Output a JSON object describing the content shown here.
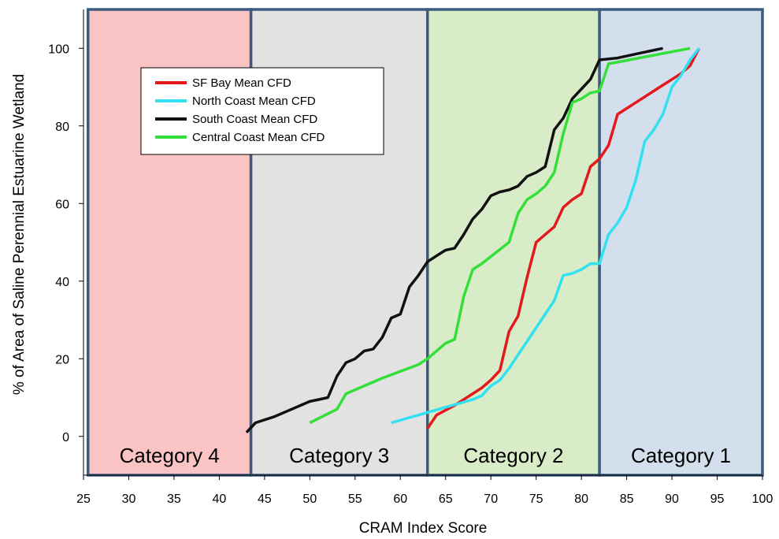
{
  "chart_data": {
    "type": "line",
    "title": "",
    "xlabel": "CRAM Index Score",
    "ylabel": "% of Area of Saline Perennial Estuarine Wetland",
    "xlim": [
      25,
      100
    ],
    "ylim": [
      -10,
      110
    ],
    "xticks": [
      25,
      30,
      35,
      40,
      45,
      50,
      55,
      60,
      65,
      70,
      75,
      80,
      85,
      90,
      95,
      100
    ],
    "yticks": [
      0,
      20,
      40,
      60,
      80,
      100
    ],
    "grid": false,
    "legend_position": "top-left",
    "bands": [
      {
        "label": "Category 4",
        "x_from": 25.5,
        "x_to": 43.5,
        "color": "#fbc4c4"
      },
      {
        "label": "Category 3",
        "x_from": 43.5,
        "x_to": 63,
        "color": "#e2e2e2"
      },
      {
        "label": "Category 2",
        "x_from": 63,
        "x_to": 82,
        "color": "#d9ecc8"
      },
      {
        "label": "Category 1",
        "x_from": 82,
        "x_to": 100,
        "color": "#d4dfee"
      }
    ],
    "band_border_color": "#3d5a80",
    "series": [
      {
        "name": "SF Bay Mean CFD",
        "color": "#e31a1c",
        "points": [
          [
            63,
            2
          ],
          [
            64,
            5.5
          ],
          [
            66,
            8
          ],
          [
            68,
            11
          ],
          [
            69,
            12.5
          ],
          [
            70,
            14.5
          ],
          [
            71,
            17
          ],
          [
            72,
            27
          ],
          [
            73,
            31
          ],
          [
            74,
            41
          ],
          [
            75,
            50
          ],
          [
            76,
            52
          ],
          [
            77,
            54
          ],
          [
            78,
            59
          ],
          [
            79,
            61
          ],
          [
            80,
            62.5
          ],
          [
            81,
            69.5
          ],
          [
            82,
            71.5
          ],
          [
            83,
            75
          ],
          [
            84,
            83
          ],
          [
            85,
            84.5
          ],
          [
            86,
            86
          ],
          [
            87,
            87.5
          ],
          [
            88,
            89
          ],
          [
            89,
            90.5
          ],
          [
            90,
            92
          ],
          [
            91,
            93.5
          ],
          [
            92,
            95.5
          ],
          [
            93,
            100
          ]
        ]
      },
      {
        "name": "North Coast Mean CFD",
        "color": "#33e0f0",
        "points": [
          [
            59,
            3.5
          ],
          [
            62,
            5.5
          ],
          [
            65,
            7.5
          ],
          [
            68,
            9.5
          ],
          [
            69,
            10.5
          ],
          [
            70,
            13
          ],
          [
            71,
            14.5
          ],
          [
            72,
            17.5
          ],
          [
            73,
            21
          ],
          [
            74,
            24.5
          ],
          [
            75,
            28
          ],
          [
            76,
            31.5
          ],
          [
            77,
            35
          ],
          [
            78,
            41.5
          ],
          [
            79,
            42
          ],
          [
            80,
            43
          ],
          [
            81,
            44.5
          ],
          [
            82,
            44.5
          ],
          [
            83,
            52
          ],
          [
            84,
            55
          ],
          [
            85,
            59
          ],
          [
            86,
            66
          ],
          [
            87,
            76
          ],
          [
            88,
            79
          ],
          [
            89,
            83
          ],
          [
            90,
            90
          ],
          [
            91,
            93
          ],
          [
            92,
            97
          ],
          [
            93,
            100
          ]
        ]
      },
      {
        "name": "South Coast Mean CFD",
        "color": "#111111",
        "points": [
          [
            43,
            1
          ],
          [
            44,
            3.5
          ],
          [
            46,
            5
          ],
          [
            48,
            7
          ],
          [
            50,
            9
          ],
          [
            51,
            9.5
          ],
          [
            52,
            10
          ],
          [
            53,
            15.5
          ],
          [
            54,
            19
          ],
          [
            55,
            20
          ],
          [
            56,
            22
          ],
          [
            57,
            22.5
          ],
          [
            58,
            25.5
          ],
          [
            59,
            30.5
          ],
          [
            60,
            31.5
          ],
          [
            61,
            38.5
          ],
          [
            62,
            41.5
          ],
          [
            63,
            45
          ],
          [
            64,
            46.5
          ],
          [
            65,
            48
          ],
          [
            66,
            48.5
          ],
          [
            67,
            52
          ],
          [
            68,
            56
          ],
          [
            69,
            58.5
          ],
          [
            70,
            62
          ],
          [
            71,
            63
          ],
          [
            72,
            63.5
          ],
          [
            73,
            64.5
          ],
          [
            74,
            67
          ],
          [
            75,
            68
          ],
          [
            76,
            69.5
          ],
          [
            77,
            79
          ],
          [
            78,
            82
          ],
          [
            79,
            87
          ],
          [
            80,
            89.5
          ],
          [
            81,
            92
          ],
          [
            82,
            97
          ],
          [
            84,
            97.5
          ],
          [
            86,
            98.5
          ],
          [
            88,
            99.5
          ],
          [
            89,
            100
          ]
        ]
      },
      {
        "name": "Central Coast Mean CFD",
        "color": "#33e03a",
        "points": [
          [
            50,
            3.5
          ],
          [
            53,
            7
          ],
          [
            54,
            11
          ],
          [
            58,
            15
          ],
          [
            62,
            18.5
          ],
          [
            63,
            20
          ],
          [
            65,
            24
          ],
          [
            66,
            25
          ],
          [
            67,
            36
          ],
          [
            68,
            43
          ],
          [
            69,
            44.5
          ],
          [
            72,
            50
          ],
          [
            73,
            57.5
          ],
          [
            74,
            61
          ],
          [
            75,
            62.5
          ],
          [
            76,
            64.5
          ],
          [
            77,
            68
          ],
          [
            78,
            78
          ],
          [
            79,
            86
          ],
          [
            80,
            87
          ],
          [
            81,
            88.5
          ],
          [
            82,
            89
          ],
          [
            83,
            96
          ],
          [
            92,
            100
          ]
        ]
      }
    ]
  }
}
